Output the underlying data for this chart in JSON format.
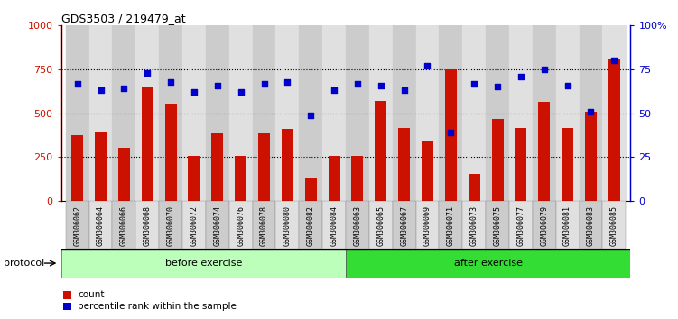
{
  "title": "GDS3503 / 219479_at",
  "samples": [
    "GSM306062",
    "GSM306064",
    "GSM306066",
    "GSM306068",
    "GSM306070",
    "GSM306072",
    "GSM306074",
    "GSM306076",
    "GSM306078",
    "GSM306080",
    "GSM306082",
    "GSM306084",
    "GSM306063",
    "GSM306065",
    "GSM306067",
    "GSM306069",
    "GSM306071",
    "GSM306073",
    "GSM306075",
    "GSM306077",
    "GSM306079",
    "GSM306081",
    "GSM306083",
    "GSM306085"
  ],
  "counts": [
    375,
    390,
    305,
    650,
    555,
    255,
    385,
    255,
    385,
    410,
    135,
    255,
    255,
    570,
    415,
    345,
    750,
    155,
    470,
    415,
    565,
    415,
    510,
    805
  ],
  "percentiles": [
    67,
    63,
    64,
    73,
    68,
    62,
    66,
    62,
    67,
    68,
    49,
    63,
    67,
    66,
    63,
    77,
    39,
    67,
    65,
    71,
    75,
    66,
    51,
    80
  ],
  "n_before": 12,
  "n_after": 12,
  "bar_color": "#cc1100",
  "dot_color": "#0000cc",
  "before_color": "#bbffbb",
  "after_color": "#33dd33",
  "col_color_even": "#cccccc",
  "col_color_odd": "#e0e0e0",
  "protocol_label": "protocol",
  "before_label": "before exercise",
  "after_label": "after exercise",
  "legend_count": "count",
  "legend_pct": "percentile rank within the sample",
  "ylim_left": [
    0,
    1000
  ],
  "ylim_right": [
    0,
    100
  ],
  "yticks_left": [
    0,
    250,
    500,
    750,
    1000
  ],
  "ytick_labels_left": [
    "0",
    "250",
    "500",
    "750",
    "1000"
  ],
  "yticks_right": [
    0,
    25,
    50,
    75,
    100
  ],
  "ytick_labels_right": [
    "0",
    "25",
    "50",
    "75",
    "100%"
  ]
}
